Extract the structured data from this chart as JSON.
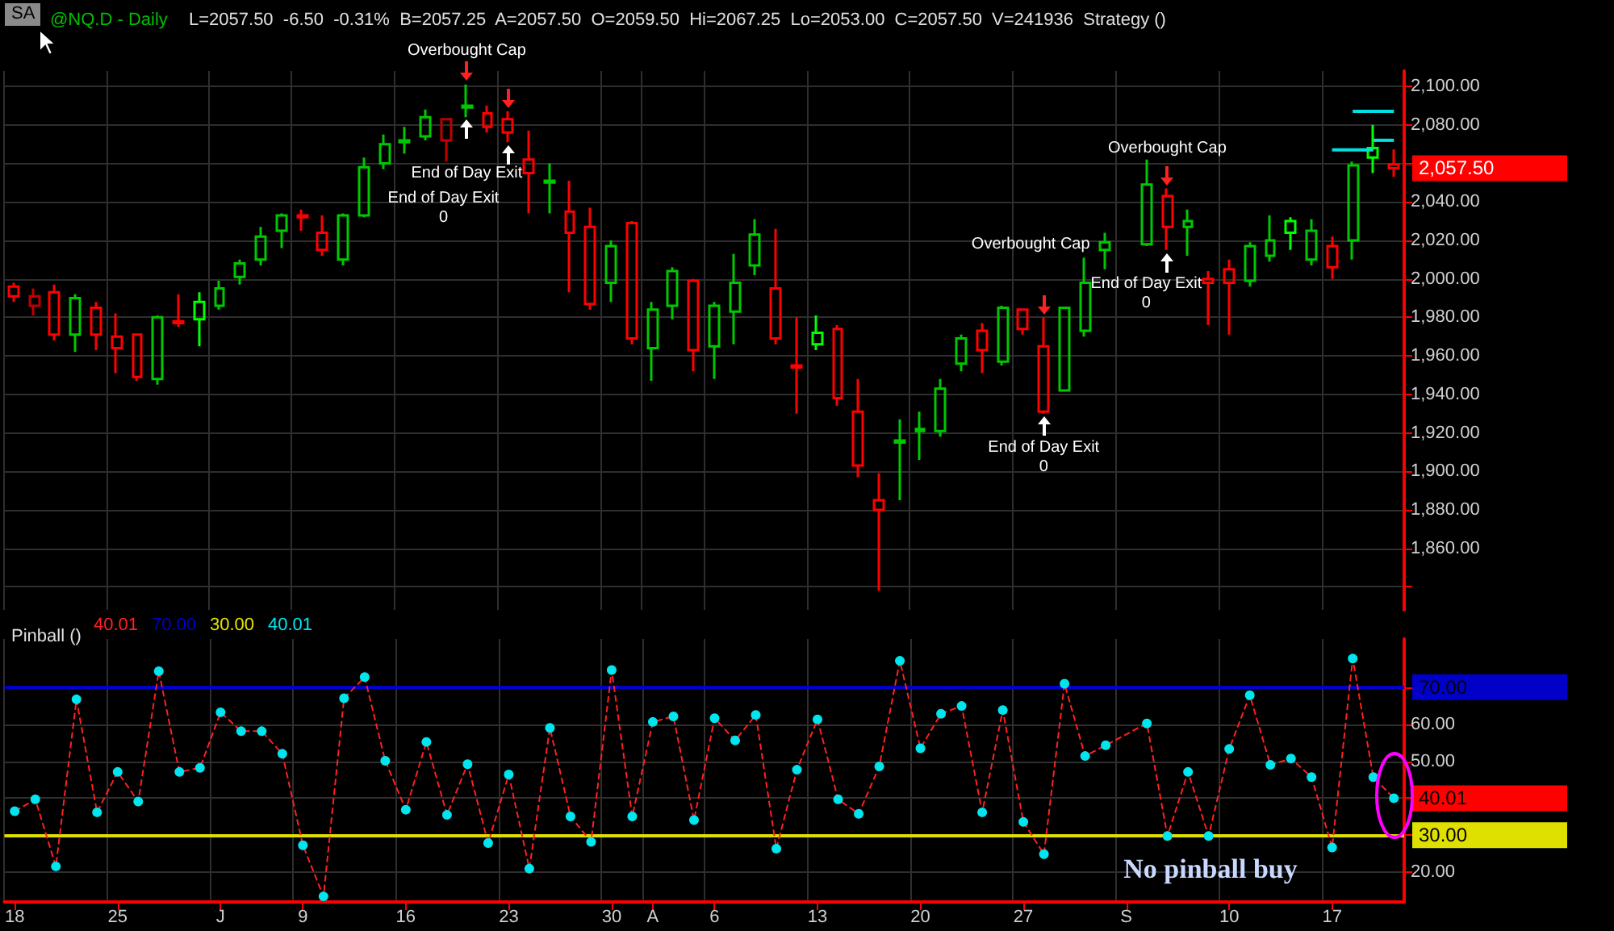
{
  "chart_data": [
    {
      "type": "candlestick",
      "title": "@NQ.D - Daily",
      "subtitle": "L=2057.50  -6.50  -0.31%  B=2057.25  A=2057.50  O=2059.50  Hi=2067.25  Lo=2053.00  C=2057.50  V=241936  Strategy ()",
      "categories": [
        null,
        null,
        null,
        null,
        null,
        null,
        null,
        null,
        null,
        null,
        null,
        null,
        null,
        null,
        null,
        null,
        null,
        null,
        null,
        null,
        null,
        null,
        null,
        null,
        null,
        null,
        null,
        null,
        null,
        null,
        null,
        null,
        null,
        null,
        null,
        null,
        null,
        null,
        null,
        null,
        null,
        null,
        null,
        null,
        null,
        null,
        null,
        null,
        null,
        null,
        null,
        null,
        null,
        null,
        null,
        null,
        null,
        null,
        null,
        null,
        null,
        null,
        null,
        null,
        null,
        null,
        null,
        null
      ],
      "ohlc": [
        [
          1996,
          1998,
          1988,
          1991
        ],
        [
          1991,
          1995,
          1981,
          1986
        ],
        [
          1993,
          1997,
          1968,
          1971
        ],
        [
          1971,
          1992,
          1962,
          1990
        ],
        [
          1985,
          1988,
          1963,
          1971
        ],
        [
          1970,
          1982,
          1951,
          1964
        ],
        [
          1971,
          1971,
          1947,
          1949
        ],
        [
          1948,
          1981,
          1945,
          1980
        ],
        [
          1978,
          1992,
          1975,
          1977
        ],
        [
          1979,
          1993,
          1965,
          1988
        ],
        [
          1986,
          1999,
          1984,
          1995
        ],
        [
          2001,
          2010,
          1997,
          2008
        ],
        [
          2010,
          2027,
          2007,
          2022
        ],
        [
          2025,
          2034,
          2016,
          2033
        ],
        [
          2033,
          2036,
          2025,
          2032
        ],
        [
          2024,
          2033,
          2012,
          2015
        ],
        [
          2010,
          2034,
          2007,
          2033
        ],
        [
          2033,
          2063,
          2032,
          2058
        ],
        [
          2060,
          2075,
          2057,
          2070
        ],
        [
          2071,
          2079,
          2065,
          2072
        ],
        [
          2074,
          2088,
          2072,
          2084
        ],
        [
          2083,
          2083,
          2061,
          2072
        ],
        [
          2089,
          2101,
          2084,
          2090
        ],
        [
          2086,
          2090,
          2076,
          2079
        ],
        [
          2083,
          2087,
          2071,
          2076
        ],
        [
          2062,
          2077,
          2034,
          2055
        ],
        [
          2050,
          2060,
          2034,
          2051
        ],
        [
          2035,
          2051,
          1993,
          2024
        ],
        [
          2027,
          2037,
          1984,
          1987
        ],
        [
          1998,
          2020,
          1988,
          2017
        ],
        [
          2029,
          2030,
          1966,
          1969
        ],
        [
          1964,
          1988,
          1947,
          1984
        ],
        [
          1986,
          2006,
          1979,
          2004
        ],
        [
          1999,
          2000,
          1952,
          1963
        ],
        [
          1965,
          1988,
          1948,
          1986
        ],
        [
          1983,
          2013,
          1966,
          1998
        ],
        [
          2007,
          2031,
          2002,
          2023
        ],
        [
          1995,
          2026,
          1966,
          1969
        ],
        [
          1955,
          1980,
          1930,
          1954
        ],
        [
          1966,
          1981,
          1963,
          1972
        ],
        [
          1974,
          1976,
          1934,
          1938
        ],
        [
          1931,
          1948,
          1897,
          1903
        ],
        [
          1885,
          1899,
          1838,
          1880
        ],
        [
          1915,
          1927,
          1885,
          1916
        ],
        [
          1921,
          1931,
          1906,
          1922
        ],
        [
          1921,
          1948,
          1918,
          1943
        ],
        [
          1956,
          1971,
          1952,
          1969
        ],
        [
          1973,
          1977,
          1951,
          1963
        ],
        [
          1957,
          1986,
          1955,
          1985
        ],
        [
          1984,
          1984,
          1971,
          1974
        ],
        [
          1965,
          1980,
          1930,
          1931
        ],
        [
          1942,
          1985,
          1942,
          1985
        ],
        [
          1973,
          2011,
          1970,
          1998
        ],
        [
          2015,
          2024,
          2005,
          2019
        ],
        null,
        [
          2018,
          2062,
          2017,
          2049
        ],
        [
          2043,
          2047,
          2015,
          2027
        ],
        [
          2027,
          2036,
          2012,
          2030
        ],
        [
          2000,
          2004,
          1976,
          1998
        ],
        [
          2005,
          2010,
          1971,
          1998
        ],
        [
          1999,
          2019,
          1996,
          2017
        ],
        [
          2012,
          2033,
          2009,
          2020
        ],
        [
          2024,
          2032,
          2015,
          2030
        ],
        [
          2010,
          2031,
          2007,
          2025
        ],
        [
          2017,
          2022,
          2000,
          2006
        ],
        [
          2020,
          2061,
          2010,
          2059
        ],
        [
          2063,
          2080,
          2055,
          2068
        ],
        [
          2059.5,
          2067.25,
          2053,
          2057.5
        ]
      ],
      "colors": [
        "#ff0000",
        "#c00000",
        "#ff0000",
        "#00c800",
        "#ff0000",
        "#ff0000",
        "#ff0000",
        "#00c800",
        "#ff0000",
        "#00ff00",
        "#00c800",
        "#00c800",
        "#00c800",
        "#00c800",
        "#ff0000",
        "#ff0000",
        "#00c800",
        "#00c800",
        "#00c800",
        "#00c800",
        "#00c800",
        "#c00000",
        "#00c800",
        "#ff0000",
        "#ff0000",
        "#ff0000",
        "#00c800",
        "#ff0000",
        "#ff0000",
        "#00c800",
        "#ff0000",
        "#00c800",
        "#00c800",
        "#ff0000",
        "#00c800",
        "#00c800",
        "#00c800",
        "#ff0000",
        "#ff0000",
        "#00ff00",
        "#ff0000",
        "#ff0000",
        "#ff0000",
        "#00c800",
        "#00c800",
        "#00c800",
        "#00c800",
        "#ff0000",
        "#00c800",
        "#ff0000",
        "#ff0000",
        "#00c800",
        "#00c800",
        "#00c800",
        null,
        "#00c800",
        "#ff0000",
        "#00c800",
        "#ff0000",
        "#ff0000",
        "#00c800",
        "#00c800",
        "#00ff00",
        "#00c800",
        "#ff0000",
        "#00c800",
        "#00ff00",
        "#ff0000"
      ],
      "series": [
        {
          "type": "line",
          "color": "#00e0e0",
          "values": [
            null,
            null,
            null,
            null,
            null,
            null,
            null,
            null,
            null,
            null,
            null,
            null,
            null,
            null,
            null,
            null,
            null,
            null,
            null,
            null,
            null,
            null,
            null,
            null,
            null,
            null,
            null,
            null,
            null,
            null,
            null,
            null,
            null,
            null,
            null,
            null,
            null,
            null,
            null,
            null,
            null,
            null,
            null,
            null,
            null,
            null,
            null,
            null,
            null,
            null,
            null,
            null,
            null,
            null,
            null,
            null,
            null,
            null,
            null,
            null,
            null,
            null,
            null,
            null,
            2067,
            2067,
            2067,
            null
          ]
        },
        {
          "type": "line",
          "color": "#00e0e0",
          "values": [
            null,
            null,
            null,
            null,
            null,
            null,
            null,
            null,
            null,
            null,
            null,
            null,
            null,
            null,
            null,
            null,
            null,
            null,
            null,
            null,
            null,
            null,
            null,
            null,
            null,
            null,
            null,
            null,
            null,
            null,
            null,
            null,
            null,
            null,
            null,
            null,
            null,
            null,
            null,
            null,
            null,
            null,
            null,
            null,
            null,
            null,
            null,
            null,
            null,
            null,
            null,
            null,
            null,
            null,
            null,
            null,
            null,
            null,
            null,
            null,
            null,
            null,
            null,
            null,
            null,
            2087,
            2087,
            2087
          ]
        },
        {
          "type": "line",
          "color": "#00e0e0",
          "values": [
            null,
            null,
            null,
            null,
            null,
            null,
            null,
            null,
            null,
            null,
            null,
            null,
            null,
            null,
            null,
            null,
            null,
            null,
            null,
            null,
            null,
            null,
            null,
            null,
            null,
            null,
            null,
            null,
            null,
            null,
            null,
            null,
            null,
            null,
            null,
            null,
            null,
            null,
            null,
            null,
            null,
            null,
            null,
            null,
            null,
            null,
            null,
            null,
            null,
            null,
            null,
            null,
            null,
            null,
            null,
            null,
            null,
            null,
            null,
            null,
            null,
            null,
            null,
            null,
            null,
            null,
            2072,
            2072
          ]
        }
      ],
      "ylim": [
        1828,
        2108
      ],
      "yticks": [
        {
          "value": 1840,
          "label": null
        },
        {
          "value": 1860,
          "label": "1,860.00"
        },
        {
          "value": 1880,
          "label": "1,880.00"
        },
        {
          "value": 1900,
          "label": "1,900.00"
        },
        {
          "value": 1920,
          "label": "1,920.00"
        },
        {
          "value": 1940,
          "label": "1,940.00"
        },
        {
          "value": 1960,
          "label": "1,960.00"
        },
        {
          "value": 1980,
          "label": "1,980.00"
        },
        {
          "value": 2000,
          "label": "2,000.00"
        },
        {
          "value": 2020,
          "label": "2,020.00"
        },
        {
          "value": 2040,
          "label": "2,040.00"
        },
        {
          "value": 2060,
          "label": null
        },
        {
          "value": 2080,
          "label": "2,080.00"
        },
        {
          "value": 2100,
          "label": "2,100.00"
        }
      ],
      "grid": true,
      "tick_labels": "y",
      "annotations": [
        "SA",
        "Overbought Cap",
        "End of Day Exit",
        "End of Day Exit",
        "0",
        "Overbought Cap",
        "End of Day Exit",
        "0",
        "Overbought Cap",
        "End of Day Exit",
        "0",
        "2,057.50"
      ]
    },
    {
      "type": "line",
      "title": "Pinball ()",
      "categories": [
        "18",
        null,
        null,
        null,
        null,
        "25",
        null,
        null,
        null,
        null,
        "J",
        null,
        null,
        null,
        "9",
        null,
        null,
        null,
        null,
        "16",
        null,
        null,
        null,
        null,
        "23",
        null,
        null,
        null,
        null,
        "30",
        null,
        "A",
        null,
        null,
        "6",
        null,
        null,
        null,
        null,
        "13",
        null,
        null,
        null,
        null,
        "20",
        null,
        null,
        null,
        null,
        "27",
        null,
        null,
        null,
        null,
        "S",
        null,
        null,
        null,
        null,
        "10",
        null,
        null,
        null,
        null,
        "17",
        null,
        null,
        null
      ],
      "series": [
        {
          "color": "#ff2020",
          "values": [
            36.5,
            39.7,
            21.6,
            66.7,
            36.2,
            47.1,
            39.1,
            74.3,
            47.1,
            48.2,
            63.2,
            58.1,
            58.1,
            52.0,
            27.3,
            13.5,
            67.0,
            72.7,
            50.1,
            36.9,
            55.2,
            35.5,
            49.2,
            27.9,
            46.4,
            21.0,
            59.0,
            35.1,
            28.2,
            74.6,
            35.1,
            60.6,
            62.1,
            34.1,
            61.6,
            55.6,
            62.5,
            26.4,
            47.7,
            61.3,
            39.7,
            35.8,
            48.6,
            77.1,
            53.5,
            62.8,
            64.9,
            36.2,
            63.8,
            33.6,
            24.9,
            70.9,
            51.4,
            54.3,
            null,
            60.2,
            29.8,
            47.1,
            29.8,
            53.3,
            67.8,
            49.0,
            50.7,
            45.7,
            26.7,
            77.7,
            45.7,
            40.01
          ],
          "colors": [
            "#00e5ee",
            "#00e5ee",
            "#00e5ee",
            "#00e5ee",
            "#00e5ee",
            "#00e5ee",
            "#00e5ee",
            "#00e5ee",
            "#00e5ee",
            "#00e5ee",
            "#00e5ee",
            "#00e5ee",
            "#00e5ee",
            "#00e5ee",
            "#00e5ee",
            "#00e5ee",
            "#00e5ee",
            "#00e5ee",
            "#00e5ee",
            "#00e5ee",
            "#00e5ee",
            "#00e5ee",
            "#00e5ee",
            "#00e5ee",
            "#00e5ee",
            "#00e5ee",
            "#00e5ee",
            "#00e5ee",
            "#00e5ee",
            "#00e5ee",
            "#00e5ee",
            "#00e5ee",
            "#00e5ee",
            "#00e5ee",
            "#00e5ee",
            "#00e5ee",
            "#00e5ee",
            "#00e5ee",
            "#00e5ee",
            "#00e5ee",
            "#00e5ee",
            "#00e5ee",
            "#00e5ee",
            "#00e5ee",
            "#00e5ee",
            "#00e5ee",
            "#00e5ee",
            "#00e5ee",
            "#00e5ee",
            "#00e5ee",
            "#00e5ee",
            "#00e5ee",
            "#00e5ee",
            "#00e5ee",
            "#00e5ee",
            "#00e5ee",
            "#00e5ee",
            "#00e5ee",
            "#00e5ee",
            "#00e5ee",
            "#00e5ee",
            "#00e5ee",
            "#00e5ee",
            "#00e5ee",
            "#00e5ee",
            "#00e5ee",
            "#00e5ee",
            "#00e5ee"
          ]
        }
      ],
      "marker": "circle",
      "line_style": "dashed",
      "ylim": [
        12,
        83
      ],
      "yticks": [
        {
          "value": 20,
          "label": "20.00"
        },
        {
          "value": 30,
          "label": null
        },
        {
          "value": 40,
          "label": null
        },
        {
          "value": 50,
          "label": "50.00"
        },
        {
          "value": 60,
          "label": "60.00"
        },
        {
          "value": 70,
          "label": null
        }
      ],
      "ref_lines": [
        {
          "axis": "y",
          "value": 70,
          "label": "70.00",
          "color": "#0000c8"
        },
        {
          "axis": "y",
          "value": 30,
          "label": "30.00",
          "color": "#e0e000"
        }
      ],
      "grid": true,
      "annotations": [
        "40.01",
        "70.00",
        "30.00",
        "40.01",
        "No pinball buy",
        "40.01"
      ]
    }
  ]
}
